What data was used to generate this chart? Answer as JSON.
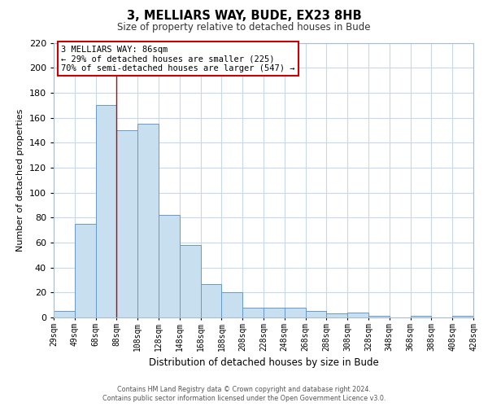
{
  "title": "3, MELLIARS WAY, BUDE, EX23 8HB",
  "subtitle": "Size of property relative to detached houses in Bude",
  "xlabel": "Distribution of detached houses by size in Bude",
  "ylabel": "Number of detached properties",
  "bar_color": "#c8dff0",
  "bar_edge_color": "#6699cc",
  "background_color": "#ffffff",
  "grid_color": "#c8d8e8",
  "bin_labels": [
    "29sqm",
    "49sqm",
    "68sqm",
    "88sqm",
    "108sqm",
    "128sqm",
    "148sqm",
    "168sqm",
    "188sqm",
    "208sqm",
    "228sqm",
    "248sqm",
    "268sqm",
    "288sqm",
    "308sqm",
    "328sqm",
    "348sqm",
    "368sqm",
    "388sqm",
    "408sqm",
    "428sqm"
  ],
  "bar_heights": [
    5,
    75,
    170,
    150,
    155,
    82,
    58,
    27,
    20,
    8,
    8,
    8,
    5,
    3,
    4,
    1,
    0,
    1,
    0,
    1
  ],
  "ylim": [
    0,
    220
  ],
  "yticks": [
    0,
    20,
    40,
    60,
    80,
    100,
    120,
    140,
    160,
    180,
    200,
    220
  ],
  "property_line_x": 3,
  "property_line_color": "#cc0000",
  "annotation_line1": "3 MELLIARS WAY: 86sqm",
  "annotation_line2": "← 29% of detached houses are smaller (225)",
  "annotation_line3": "70% of semi-detached houses are larger (547) →",
  "annotation_box_color": "#ffffff",
  "annotation_box_edge_color": "#cc0000",
  "footer_line1": "Contains HM Land Registry data © Crown copyright and database right 2024.",
  "footer_line2": "Contains public sector information licensed under the Open Government Licence v3.0."
}
